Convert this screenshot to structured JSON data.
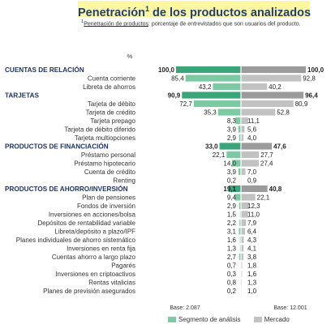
{
  "title": "Penetración",
  "title_sup": "1",
  "title_rest": " de los productos analizados",
  "footnote": {
    "marker": "1",
    "term": "Penetración de productos",
    "text": ": porcentaje de entrevistados que son usuarios del producto."
  },
  "colors": {
    "segment": "#3aa57a",
    "segment_light": "#7ccaa3",
    "mercado": "#9b9b9b",
    "mercado_light": "#c2c2c2",
    "category_text": "#1f3366",
    "title_bg": "#fdf6a2"
  },
  "chart_data": {
    "type": "bar",
    "unit_label": "%",
    "categories": [
      "CUENTAS DE RELACIÓN",
      "Cuenta corriente",
      "Libreta de ahorros",
      "TARJETAS",
      "Tarjeta de débito",
      "Tarjeta de crédito",
      "Tarjeta prepago",
      "Tarjeta de débito diferido",
      "Tarjeta multiopciones",
      "PRODUCTOS DE FINANCIACIÓN",
      "Préstamo personal",
      "Préstamo hipotecario",
      "Cuenta de crédito",
      "Renting",
      "PRODUCTOS DE AHORRO/INVERSIÓN",
      "Plan de pensiones",
      "Fondos de inversión",
      "Inversiones en acciones/bolsa",
      "Depósitos de rentabilidad variable",
      "Libreta/depósito a plazo/IPF",
      "Planes individuales de ahorro sistemático",
      "Inversiones en renta fija",
      "Cuentas ahorro a largo plazo",
      "Pagarés",
      "Inversiones en criptoactivos",
      "Rentas vitalicias",
      "Planes de previsión asegurados"
    ],
    "is_category": [
      true,
      false,
      false,
      true,
      false,
      false,
      false,
      false,
      false,
      true,
      false,
      false,
      false,
      false,
      true,
      false,
      false,
      false,
      false,
      false,
      false,
      false,
      false,
      false,
      false,
      false,
      false
    ],
    "series": [
      {
        "name": "Segmento de análisis",
        "labels": [
          "100,0",
          "85,4",
          "43,2",
          "90,9",
          "72,7",
          "35,3",
          "8,3",
          "3,9",
          "2,9",
          "33,0",
          "22,1",
          "14,0",
          "3,9",
          "0,2",
          "19,1",
          "9,4",
          "2,9",
          "1,5",
          "2,2",
          "3,1",
          "1,6",
          "1,3",
          "2,7",
          "0,7",
          "0,3",
          "0,8",
          "0,2"
        ],
        "values": [
          100.0,
          85.4,
          43.2,
          90.9,
          72.7,
          35.3,
          8.3,
          3.9,
          2.9,
          33.0,
          22.1,
          14.0,
          3.9,
          0.2,
          19.1,
          9.4,
          2.9,
          1.5,
          2.2,
          3.1,
          1.6,
          1.3,
          2.7,
          0.7,
          0.3,
          0.8,
          0.2
        ]
      },
      {
        "name": "Mercado",
        "labels": [
          "100,0",
          "92,8",
          "40,2",
          "96,4",
          "80,9",
          "52,8",
          "11,1",
          "5,6",
          "4,0",
          "47,6",
          "27,7",
          "27,4",
          "7,0",
          "0,9",
          "40,8",
          "22,1",
          "12,3",
          "11,0",
          "7,9",
          "6,4",
          "4,3",
          "4,1",
          "3,8",
          "1,8",
          "1,6",
          "1,3",
          "1,0"
        ],
        "values": [
          100.0,
          92.8,
          40.2,
          96.4,
          80.9,
          52.8,
          11.1,
          5.6,
          4.0,
          47.6,
          27.7,
          27.4,
          7.0,
          0.9,
          40.8,
          22.1,
          12.3,
          11.0,
          7.9,
          6.4,
          4.3,
          4.1,
          3.8,
          1.8,
          1.6,
          1.3,
          1.0
        ]
      }
    ],
    "bases": [
      "Base: 2.087",
      "Base: 12.001"
    ],
    "legend_position": "bottom"
  }
}
